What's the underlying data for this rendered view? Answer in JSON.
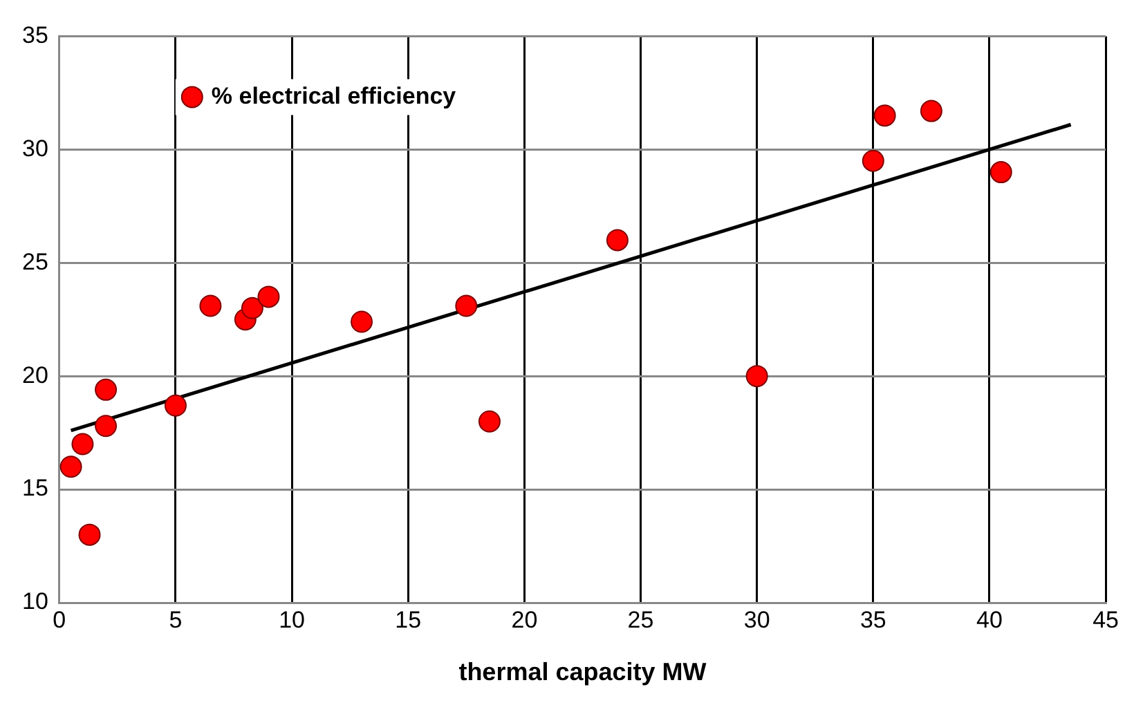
{
  "chart_data": {
    "type": "scatter",
    "xlabel": "thermal capacity MW",
    "xlim": [
      0,
      45
    ],
    "xticks": [
      0,
      5,
      10,
      15,
      20,
      25,
      30,
      35,
      40,
      45
    ],
    "ylim": [
      10,
      35
    ],
    "yticks": [
      10,
      15,
      20,
      25,
      30,
      35
    ],
    "grid": true,
    "legend": "top left",
    "series": [
      {
        "name": "% electrical efficiency",
        "marker": "circle",
        "color": "#ff0000",
        "x": [
          0.5,
          1.0,
          1.3,
          2.0,
          2.0,
          5.0,
          6.5,
          8.0,
          8.3,
          9.0,
          13.0,
          17.5,
          18.5,
          24.0,
          30.0,
          35.0,
          35.5,
          37.5,
          40.5
        ],
        "values": [
          16.0,
          17.0,
          13.0,
          17.8,
          19.4,
          18.7,
          23.1,
          22.5,
          23.0,
          23.5,
          22.4,
          23.1,
          18.0,
          26.0,
          20.0,
          29.5,
          31.5,
          31.7,
          29.0
        ]
      },
      {
        "type": "line",
        "marker": "none",
        "color": "#000000",
        "x": [
          0.5,
          43.5
        ],
        "values": [
          17.6,
          31.1
        ]
      }
    ]
  }
}
